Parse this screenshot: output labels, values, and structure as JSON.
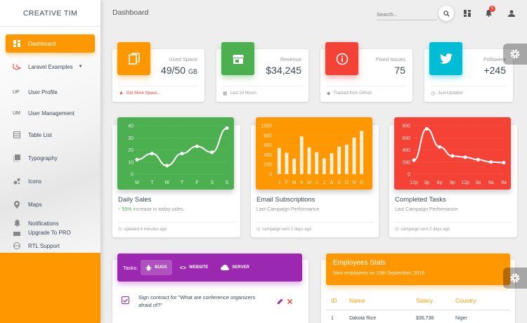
{
  "brand": "CREATIVE TIM",
  "sidebar": {
    "items": [
      {
        "label": "Dashboard",
        "icon": "dashboard-icon"
      },
      {
        "label": "Laravel Examples",
        "icon": "laravel-icon"
      },
      {
        "label": "User Profile",
        "abbr": "UP"
      },
      {
        "label": "User Management",
        "abbr": "UM"
      },
      {
        "label": "Table List",
        "icon": "table-icon"
      },
      {
        "label": "Typography",
        "icon": "library-icon"
      },
      {
        "label": "Icons",
        "icon": "bubble-icon"
      },
      {
        "label": "Maps",
        "icon": "location-icon"
      },
      {
        "label": "Notifications",
        "icon": "bell-icon"
      },
      {
        "label": "Upgrade To PRO",
        "icon": "upgrade-icon"
      },
      {
        "label": "RTL Support",
        "icon": "language-icon"
      }
    ]
  },
  "header": {
    "title": "Dashboard",
    "search_placeholder": "Search...",
    "notification_count": "5"
  },
  "stats": [
    {
      "label": "Used Space",
      "value": "49/50",
      "unit": "GB",
      "footer": "Get More Space...",
      "color": "#ff9800"
    },
    {
      "label": "Revenue",
      "value": "$34,245",
      "footer": "Last 24 Hours",
      "color": "#4caf50"
    },
    {
      "label": "Fixed Issues",
      "value": "75",
      "footer": "Tracked from Github",
      "color": "#f44336"
    },
    {
      "label": "Followers",
      "value": "+245",
      "footer": "Just Updated",
      "color": "#00bcd4"
    }
  ],
  "charts": [
    {
      "title": "Daily Sales",
      "subtitle_pct": "55%",
      "subtitle_rest": " increase in today sales.",
      "footer": "updated 4 minutes ago",
      "color": "#4caf50"
    },
    {
      "title": "Email Subscriptions",
      "subtitle": "Last Campaign Performance",
      "footer": "campaign sent 2 days ago",
      "color": "#ff9800"
    },
    {
      "title": "Completed Tasks",
      "subtitle": "Last Campaign Performance",
      "footer": "campaign sent 2 days ago",
      "color": "#f44336"
    }
  ],
  "chart_data": [
    {
      "type": "line",
      "categories": [
        "M",
        "T",
        "W",
        "T",
        "F",
        "S",
        "S"
      ],
      "values": [
        12,
        17,
        7,
        17,
        23,
        18,
        38
      ],
      "ylim": [
        0,
        40
      ],
      "yticks": [
        0,
        10,
        20,
        30,
        40
      ]
    },
    {
      "type": "bar",
      "categories": [
        "J",
        "F",
        "M",
        "A",
        "M",
        "J",
        "J",
        "A",
        "S",
        "O",
        "N",
        "D"
      ],
      "values": [
        542,
        443,
        320,
        780,
        553,
        453,
        326,
        434,
        568,
        610,
        756,
        895
      ],
      "ylim": [
        0,
        1000
      ],
      "yticks": [
        0,
        200,
        400,
        600,
        800,
        1000
      ]
    },
    {
      "type": "line",
      "categories": [
        "12p",
        "3p",
        "6p",
        "9p",
        "12p",
        "3a",
        "6a",
        "9a"
      ],
      "values": [
        230,
        750,
        450,
        300,
        280,
        240,
        200,
        190
      ],
      "ylim": [
        0,
        800
      ],
      "yticks": [
        0,
        200,
        400,
        600,
        800
      ]
    }
  ],
  "tasks": {
    "label": "Tasks:",
    "tabs": [
      "BUGS",
      "WEBSITE",
      "SERVER"
    ],
    "rows": [
      {
        "text": "Sign contract for \"What are conference organizers afraid of?\"",
        "checked": true
      }
    ]
  },
  "employees": {
    "title": "Employees Stats",
    "subtitle": "New employees on 15th September, 2016",
    "columns": [
      "ID",
      "Name",
      "Salary",
      "Country"
    ],
    "rows": [
      {
        "id": "1",
        "name": "Dakota Rice",
        "salary": "$36,738",
        "country": "Niger"
      }
    ]
  }
}
